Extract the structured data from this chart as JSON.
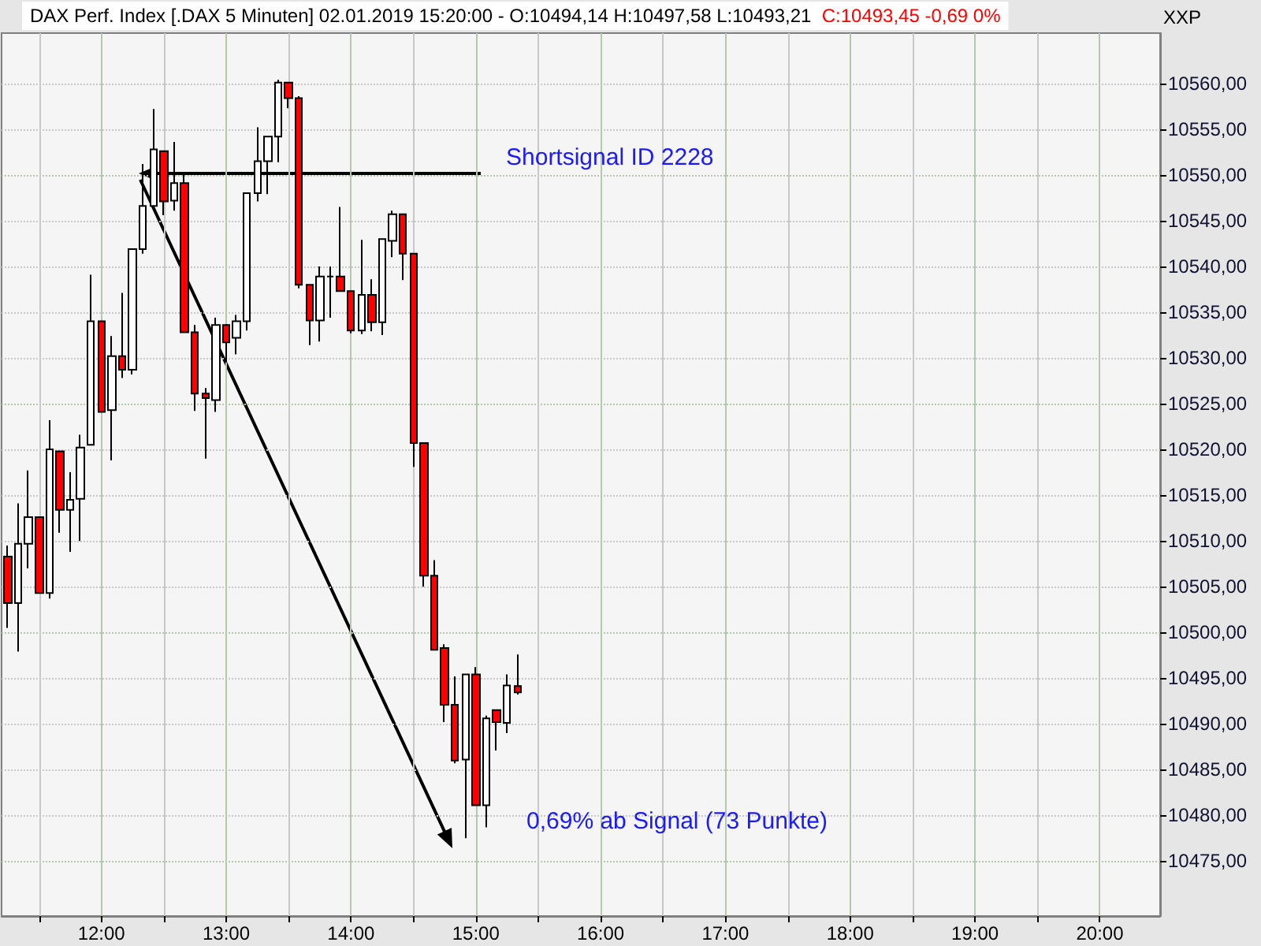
{
  "chart_data": {
    "type": "candlestick",
    "title": "DAX Perf. Index [.DAX 5 Minuten] 02.01.2019 15:20:00 - O:10494,14 H:10497,58 L:10493,21",
    "subtitle": "C:10493,45 -0,69 0%",
    "ylabel": "XXP",
    "x": [
      "2019-01-02T11:15",
      "2019-01-02T11:20",
      "2019-01-02T11:25",
      "2019-01-02T11:30",
      "2019-01-02T11:35",
      "2019-01-02T11:40",
      "2019-01-02T11:45",
      "2019-01-02T11:50",
      "2019-01-02T11:55",
      "2019-01-02T12:00",
      "2019-01-02T12:05",
      "2019-01-02T12:10",
      "2019-01-02T12:15",
      "2019-01-02T12:20",
      "2019-01-02T12:25",
      "2019-01-02T12:30",
      "2019-01-02T12:35",
      "2019-01-02T12:40",
      "2019-01-02T12:45",
      "2019-01-02T12:50",
      "2019-01-02T12:55",
      "2019-01-02T13:00",
      "2019-01-02T13:05",
      "2019-01-02T13:10",
      "2019-01-02T13:15",
      "2019-01-02T13:20",
      "2019-01-02T13:25",
      "2019-01-02T13:30",
      "2019-01-02T13:35",
      "2019-01-02T13:40",
      "2019-01-02T13:45",
      "2019-01-02T13:50",
      "2019-01-02T13:55",
      "2019-01-02T14:00",
      "2019-01-02T14:05",
      "2019-01-02T14:10",
      "2019-01-02T14:15",
      "2019-01-02T14:20",
      "2019-01-02T14:25",
      "2019-01-02T14:30",
      "2019-01-02T14:35",
      "2019-01-02T14:40",
      "2019-01-02T14:45",
      "2019-01-02T14:50",
      "2019-01-02T14:55",
      "2019-01-02T15:00",
      "2019-01-02T15:05",
      "2019-01-02T15:10",
      "2019-01-02T15:15",
      "2019-01-02T15:20"
    ],
    "ohlc": [
      [
        10508.3,
        10509.5,
        10500.5,
        10503.2
      ],
      [
        10503.2,
        10514.1,
        10497.9,
        10509.7
      ],
      [
        10509.7,
        10517.7,
        10507.0,
        10512.6
      ],
      [
        10512.6,
        10512.6,
        10504.3,
        10504.3
      ],
      [
        10504.3,
        10523.2,
        10503.7,
        10520.0
      ],
      [
        10519.8,
        10519.8,
        10510.9,
        10513.4
      ],
      [
        10513.4,
        10517.5,
        10508.8,
        10514.5
      ],
      [
        10514.6,
        10521.6,
        10510.0,
        10520.2
      ],
      [
        10520.5,
        10539.1,
        10520.5,
        10534.0
      ],
      [
        10534.0,
        10534.0,
        10524.1,
        10524.1
      ],
      [
        10524.3,
        10532.4,
        10518.8,
        10530.2
      ],
      [
        10530.2,
        10537.1,
        10527.8,
        10528.7
      ],
      [
        10528.7,
        10541.9,
        10528.2,
        10541.9
      ],
      [
        10541.9,
        10551.2,
        10541.4,
        10546.6
      ],
      [
        10546.6,
        10557.2,
        10546.6,
        10552.8
      ],
      [
        10552.6,
        10552.6,
        10545.6,
        10547.1
      ],
      [
        10547.2,
        10553.6,
        10546.1,
        10549.1
      ],
      [
        10549.1,
        10550.2,
        10532.8,
        10532.8
      ],
      [
        10532.8,
        10533.6,
        10524.2,
        10526.1
      ],
      [
        10526.1,
        10526.7,
        10519.0,
        10525.6
      ],
      [
        10525.4,
        10534.4,
        10524.1,
        10533.6
      ],
      [
        10533.6,
        10533.7,
        10529.5,
        10531.7
      ],
      [
        10532.2,
        10534.7,
        10530.4,
        10534.0
      ],
      [
        10534.0,
        10548.0,
        10533.0,
        10548.0
      ],
      [
        10548.0,
        10555.2,
        10547.1,
        10551.5
      ],
      [
        10551.5,
        10554.2,
        10547.9,
        10554.2
      ],
      [
        10554.2,
        10560.4,
        10551.4,
        10560.1
      ],
      [
        10560.1,
        10560.1,
        10557.3,
        10558.4
      ],
      [
        10558.4,
        10558.6,
        10537.6,
        10538.0
      ],
      [
        10538.0,
        10538.0,
        10531.4,
        10534.1
      ],
      [
        10534.1,
        10540.0,
        10531.8,
        10538.9
      ],
      [
        10538.9,
        10540.0,
        10534.4,
        10538.9
      ],
      [
        10538.9,
        10546.5,
        10537.3,
        10537.3
      ],
      [
        10537.3,
        10537.3,
        10532.7,
        10533.0
      ],
      [
        10533.0,
        10542.9,
        10532.6,
        10536.9
      ],
      [
        10536.9,
        10538.6,
        10532.9,
        10533.9
      ],
      [
        10533.9,
        10543.0,
        10532.5,
        10543.0
      ],
      [
        10542.8,
        10546.1,
        10541.0,
        10545.7
      ],
      [
        10545.7,
        10545.7,
        10538.5,
        10541.4
      ],
      [
        10541.4,
        10541.4,
        10518.1,
        10520.7
      ],
      [
        10520.7,
        10520.7,
        10505.0,
        10506.2
      ],
      [
        10506.2,
        10507.9,
        10498.1,
        10498.1
      ],
      [
        10498.3,
        10498.7,
        10490.2,
        10492.1
      ],
      [
        10492.1,
        10495.2,
        10485.7,
        10486.0
      ],
      [
        10486.1,
        10495.4,
        10477.5,
        10495.4
      ],
      [
        10495.4,
        10496.2,
        10481.1,
        10481.1
      ],
      [
        10481.1,
        10490.9,
        10478.7,
        10490.6
      ],
      [
        10491.5,
        10491.5,
        10487.1,
        10490.2
      ],
      [
        10490.1,
        10495.4,
        10489.0,
        10494.2
      ],
      [
        10494.14,
        10497.58,
        10493.21,
        10493.45
      ]
    ],
    "colors": [
      "#ff0000",
      "#ffffff",
      "#ffffff",
      "#ff0000",
      "#ffffff",
      "#ff0000",
      "#ffffff",
      "#ffffff",
      "#ffffff",
      "#ff0000",
      "#ffffff",
      "#ff0000",
      "#ffffff",
      "#ffffff",
      "#ffffff",
      "#ff0000",
      "#ffffff",
      "#ff0000",
      "#ff0000",
      "#ff0000",
      "#ffffff",
      "#ff0000",
      "#ffffff",
      "#ffffff",
      "#ffffff",
      "#ffffff",
      "#ffffff",
      "#ff0000",
      "#ff0000",
      "#ff0000",
      "#ffffff",
      "#000000",
      "#ff0000",
      "#ff0000",
      "#ffffff",
      "#ff0000",
      "#ffffff",
      "#ffffff",
      "#ff0000",
      "#ff0000",
      "#ff0000",
      "#ff0000",
      "#ff0000",
      "#ff0000",
      "#ffffff",
      "#ff0000",
      "#ffffff",
      "#ff0000",
      "#ffffff",
      "#ff0000"
    ],
    "xlim": [
      "2019-01-02T11:12",
      "2019-01-02T20:29"
    ],
    "xticks": [
      {
        "value": "2019-01-02T11:30",
        "label": null
      },
      {
        "value": "2019-01-02T12:00",
        "label": "12:00"
      },
      {
        "value": "2019-01-02T12:30",
        "label": null
      },
      {
        "value": "2019-01-02T13:00",
        "label": "13:00"
      },
      {
        "value": "2019-01-02T13:30",
        "label": null
      },
      {
        "value": "2019-01-02T14:00",
        "label": "14:00"
      },
      {
        "value": "2019-01-02T14:30",
        "label": null
      },
      {
        "value": "2019-01-02T15:00",
        "label": "15:00"
      },
      {
        "value": "2019-01-02T15:30",
        "label": null
      },
      {
        "value": "2019-01-02T16:00",
        "label": "16:00"
      },
      {
        "value": "2019-01-02T16:30",
        "label": null
      },
      {
        "value": "2019-01-02T17:00",
        "label": "17:00"
      },
      {
        "value": "2019-01-02T17:30",
        "label": null
      },
      {
        "value": "2019-01-02T18:00",
        "label": "18:00"
      },
      {
        "value": "2019-01-02T18:30",
        "label": null
      },
      {
        "value": "2019-01-02T19:00",
        "label": "19:00"
      },
      {
        "value": "2019-01-02T19:30",
        "label": null
      },
      {
        "value": "2019-01-02T20:00",
        "label": "20:00"
      }
    ],
    "ylim": [
      10469,
      10565.5
    ],
    "yticks": [
      {
        "value": 10475,
        "label": "10475,00"
      },
      {
        "value": 10480,
        "label": "10480,00"
      },
      {
        "value": 10485,
        "label": "10485,00"
      },
      {
        "value": 10490,
        "label": "10490,00"
      },
      {
        "value": 10495,
        "label": "10495,00"
      },
      {
        "value": 10500,
        "label": "10500,00"
      },
      {
        "value": 10505,
        "label": "10505,00"
      },
      {
        "value": 10510,
        "label": "10510,00"
      },
      {
        "value": 10515,
        "label": "10515,00"
      },
      {
        "value": 10520,
        "label": "10520,00"
      },
      {
        "value": 10525,
        "label": "10525,00"
      },
      {
        "value": 10530,
        "label": "10530,00"
      },
      {
        "value": 10535,
        "label": "10535,00"
      },
      {
        "value": 10540,
        "label": "10540,00"
      },
      {
        "value": 10545,
        "label": "10545,00"
      },
      {
        "value": 10550,
        "label": "10550,00"
      },
      {
        "value": 10555,
        "label": "10555,00"
      },
      {
        "value": 10560,
        "label": "10560,00"
      }
    ],
    "grid": true,
    "annotations": [
      "Shortsignal ID 2228",
      "0,69% ab Signal (73 Punkte)"
    ]
  }
}
